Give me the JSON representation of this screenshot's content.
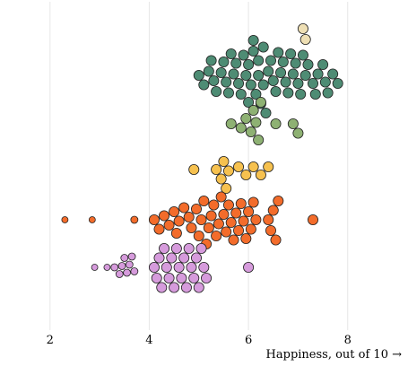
{
  "chart_data": {
    "type": "scatter",
    "subtype": "beeswarm",
    "title": "",
    "xlabel": "Happiness, out of 10 →",
    "ylabel": "",
    "xlim": [
      1.1,
      8.8
    ],
    "x_ticks": [
      2,
      4,
      6,
      8
    ],
    "grid": true,
    "series": [
      {
        "color": "#eedfb4",
        "values": [
          7.15,
          7.1
        ]
      },
      {
        "color": "#4e8c74",
        "values": [
          5.0,
          5.1,
          5.2,
          5.25,
          5.3,
          5.35,
          5.45,
          5.5,
          5.55,
          5.6,
          5.65,
          5.7,
          5.75,
          5.8,
          5.85,
          5.9,
          5.95,
          6.0,
          6.0,
          6.05,
          6.1,
          6.1,
          6.15,
          6.2,
          6.2,
          6.25,
          6.3,
          6.3,
          6.35,
          6.4,
          6.45,
          6.5,
          6.55,
          6.6,
          6.65,
          6.7,
          6.75,
          6.8,
          6.85,
          6.9,
          6.95,
          7.0,
          7.05,
          7.1,
          7.15,
          7.2,
          7.3,
          7.35,
          7.4,
          7.5,
          7.55,
          7.6,
          7.7,
          7.8
        ]
      },
      {
        "color": "#8eb173",
        "values": [
          5.65,
          5.85,
          5.95,
          6.05,
          6.1,
          6.15,
          6.2,
          6.25,
          6.55,
          6.9,
          7.0
        ]
      },
      {
        "color": "#f6c14f",
        "values": [
          4.9,
          5.35,
          5.45,
          5.5,
          5.55,
          5.6,
          5.8,
          5.95,
          6.1,
          6.25,
          6.4
        ]
      },
      {
        "color": "#f36c2b",
        "values": [
          2.3,
          2.85,
          3.7,
          4.1,
          4.2,
          4.3,
          4.4,
          4.5,
          4.55,
          4.6,
          4.7,
          4.8,
          4.85,
          4.95,
          5.0,
          5.05,
          5.1,
          5.15,
          5.2,
          5.25,
          5.3,
          5.35,
          5.4,
          5.45,
          5.5,
          5.55,
          5.6,
          5.65,
          5.7,
          5.75,
          5.8,
          5.85,
          5.9,
          5.95,
          6.0,
          6.05,
          6.1,
          6.15,
          6.4,
          6.45,
          6.5,
          6.55,
          6.6,
          7.3
        ]
      },
      {
        "color": "#d69bdc",
        "values": [
          2.9,
          3.15,
          3.3,
          3.4,
          3.45,
          3.5,
          3.55,
          3.6,
          3.65,
          3.7,
          4.1,
          4.15,
          4.2,
          4.25,
          4.3,
          4.35,
          4.4,
          4.45,
          4.5,
          4.55,
          4.6,
          4.65,
          4.7,
          4.75,
          4.8,
          4.85,
          4.9,
          4.95,
          5.0,
          5.05,
          5.1,
          5.15,
          6.0
        ]
      }
    ]
  }
}
